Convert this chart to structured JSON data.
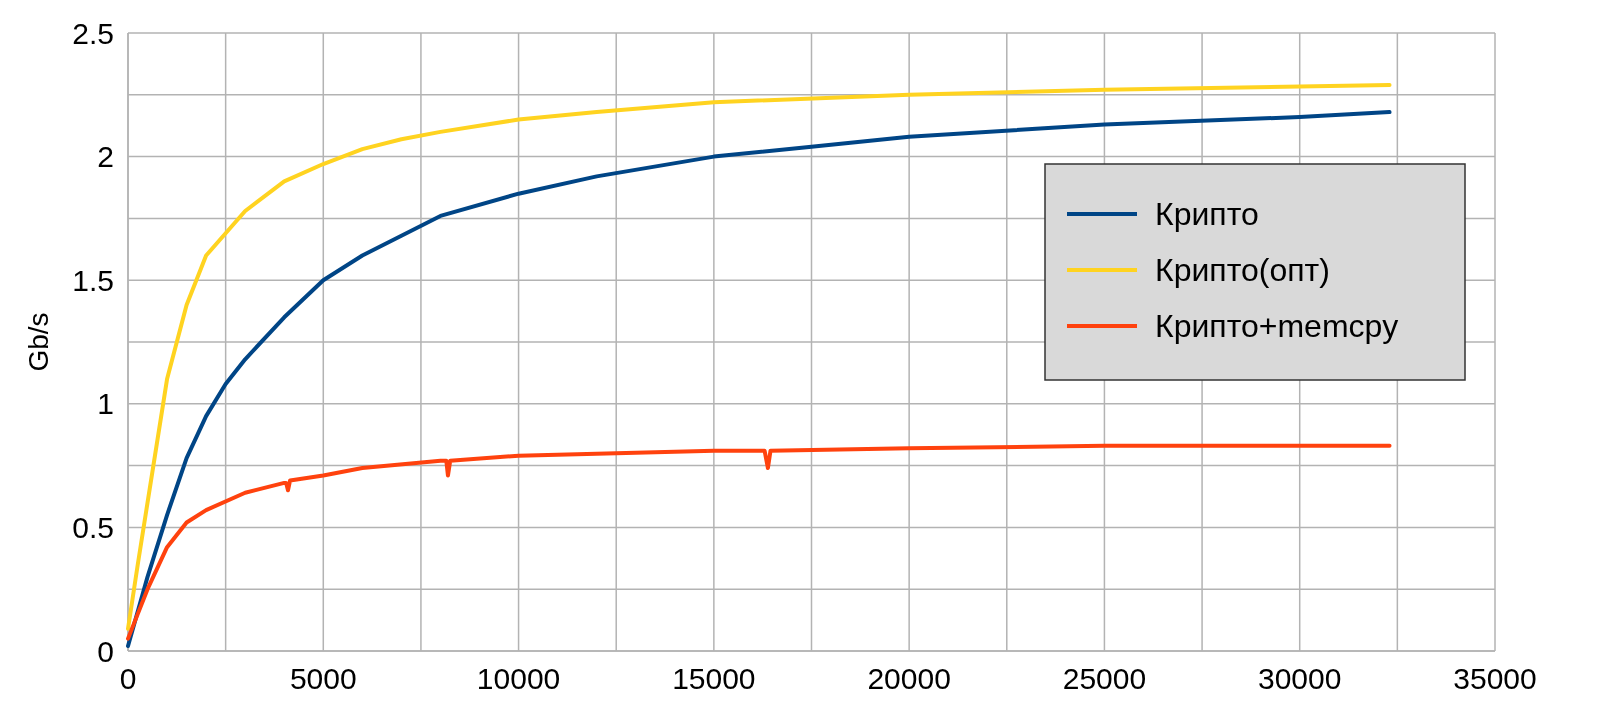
{
  "chart_data": {
    "type": "line",
    "ylabel": "Gb/s",
    "xlim": [
      0,
      35000
    ],
    "ylim": [
      0,
      2.5
    ],
    "xticks": [
      0,
      {
        "value": 2500,
        "label": null
      },
      5000,
      {
        "value": 7500,
        "label": null
      },
      10000,
      {
        "value": 12500,
        "label": null
      },
      15000,
      {
        "value": 17500,
        "label": null
      },
      20000,
      {
        "value": 22500,
        "label": null
      },
      25000,
      {
        "value": 27500,
        "label": null
      },
      30000,
      {
        "value": 32500,
        "label": null
      },
      35000
    ],
    "yticks": [
      0,
      {
        "value": 0.25,
        "label": null
      },
      0.5,
      {
        "value": 0.75,
        "label": null
      },
      1,
      {
        "value": 1.25,
        "label": null
      },
      1.5,
      {
        "value": 1.75,
        "label": null
      },
      2,
      {
        "value": 2.25,
        "label": null
      },
      2.5
    ],
    "grid": true,
    "legend": "right",
    "line_style": "solid",
    "marker": "none",
    "series": [
      {
        "name": "Крипто",
        "color": "#004586",
        "x": [
          0,
          500,
          1000,
          1500,
          2000,
          2500,
          3000,
          4000,
          5000,
          6000,
          7000,
          8000,
          10000,
          12000,
          15000,
          17500,
          20000,
          25000,
          30000,
          32300
        ],
        "values": [
          0.02,
          0.3,
          0.55,
          0.78,
          0.95,
          1.08,
          1.18,
          1.35,
          1.5,
          1.6,
          1.68,
          1.76,
          1.85,
          1.92,
          2.0,
          2.04,
          2.08,
          2.13,
          2.16,
          2.18
        ]
      },
      {
        "name": "Крипто(опт)",
        "color": "#ffd320",
        "x": [
          0,
          250,
          500,
          1000,
          1500,
          2000,
          3000,
          4000,
          5000,
          6000,
          7000,
          8000,
          10000,
          12000,
          15000,
          20000,
          25000,
          32300
        ],
        "values": [
          0.09,
          0.35,
          0.6,
          1.1,
          1.4,
          1.6,
          1.78,
          1.9,
          1.97,
          2.03,
          2.07,
          2.1,
          2.15,
          2.18,
          2.22,
          2.25,
          2.27,
          2.29
        ]
      },
      {
        "name": "Крипто+memcpy",
        "color": "#ff420e",
        "x": [
          0,
          500,
          1000,
          1500,
          2000,
          3000,
          4000,
          4050,
          4096,
          4150,
          5000,
          6000,
          8000,
          8150,
          8192,
          8250,
          10000,
          15000,
          16300,
          16384,
          16450,
          20000,
          25000,
          32300
        ],
        "values": [
          0.05,
          0.25,
          0.42,
          0.52,
          0.57,
          0.64,
          0.68,
          0.68,
          0.65,
          0.69,
          0.71,
          0.74,
          0.77,
          0.77,
          0.71,
          0.77,
          0.79,
          0.81,
          0.81,
          0.74,
          0.81,
          0.82,
          0.83,
          0.83
        ]
      }
    ]
  }
}
